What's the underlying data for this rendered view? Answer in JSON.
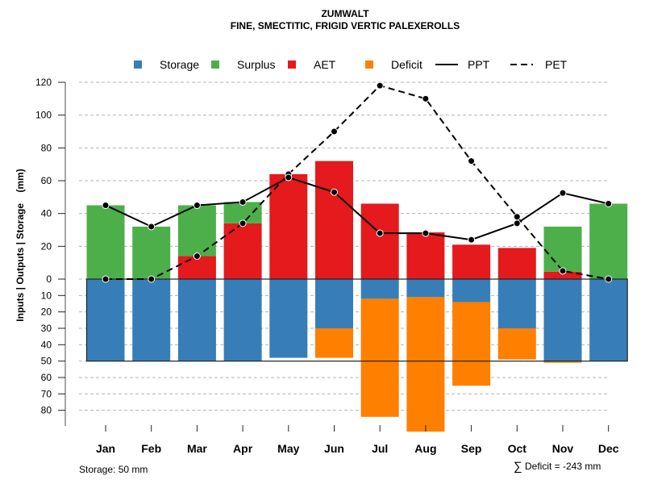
{
  "chart_data": {
    "type": "bar",
    "title": "ZUMWALT",
    "subtitle": "FINE, SMECTITIC, FRIGID VERTIC PALEXEROLLS",
    "ylabel": "Inputs | Outputs | Storage    (mm)",
    "xlabel": "",
    "categories": [
      "Jan",
      "Feb",
      "Mar",
      "Apr",
      "May",
      "Jun",
      "Jul",
      "Aug",
      "Sep",
      "Oct",
      "Nov",
      "Dec"
    ],
    "y_ticks_above": [
      "0",
      "20",
      "40",
      "60",
      "80",
      "100",
      "120"
    ],
    "y_tick_values_above": [
      0,
      20,
      40,
      60,
      80,
      100,
      120
    ],
    "y_ticks_below": [
      "10",
      "20",
      "30",
      "40",
      "50",
      "60",
      "70",
      "80"
    ],
    "y_tick_values_below": [
      10,
      20,
      30,
      40,
      50,
      60,
      70,
      80
    ],
    "ylim_above": [
      0,
      120
    ],
    "ylim_below": [
      0,
      90
    ],
    "grid": true,
    "legend_position": "top",
    "storage_capacity": 50,
    "series": [
      {
        "name": "Storage",
        "kind": "bar-below",
        "color": "#377EB8",
        "values": [
          50,
          50,
          50,
          50,
          48,
          30,
          12,
          11,
          14,
          30,
          50,
          50
        ]
      },
      {
        "name": "Surplus",
        "kind": "bar-above",
        "color": "#4DAF4A",
        "values": [
          45,
          32,
          31,
          13,
          0,
          0,
          0,
          0,
          0,
          0,
          27.5,
          46
        ]
      },
      {
        "name": "AET",
        "kind": "bar-above",
        "color": "#E41A1C",
        "values": [
          0,
          0,
          14,
          34,
          64,
          72,
          46,
          28.5,
          21,
          19,
          4.5,
          0
        ]
      },
      {
        "name": "Deficit",
        "kind": "bar-below",
        "color": "#FF7F00",
        "values": [
          0,
          0,
          0,
          0,
          0,
          18,
          72,
          82,
          51,
          19,
          1,
          0
        ]
      },
      {
        "name": "PPT",
        "kind": "line-solid",
        "color": "#000000",
        "values": [
          45,
          32,
          45,
          47,
          62,
          53,
          28,
          28,
          24,
          34,
          52.5,
          46
        ]
      },
      {
        "name": "PET",
        "kind": "line-dashed",
        "color": "#000000",
        "values": [
          0,
          0,
          14,
          34,
          64,
          90,
          118,
          110,
          72,
          38,
          5,
          0
        ]
      }
    ],
    "annotations": {
      "storage_note": "Storage: 50 mm",
      "deficit_sum_symbol": "∑",
      "deficit_sum": "Deficit = -243 mm"
    }
  }
}
